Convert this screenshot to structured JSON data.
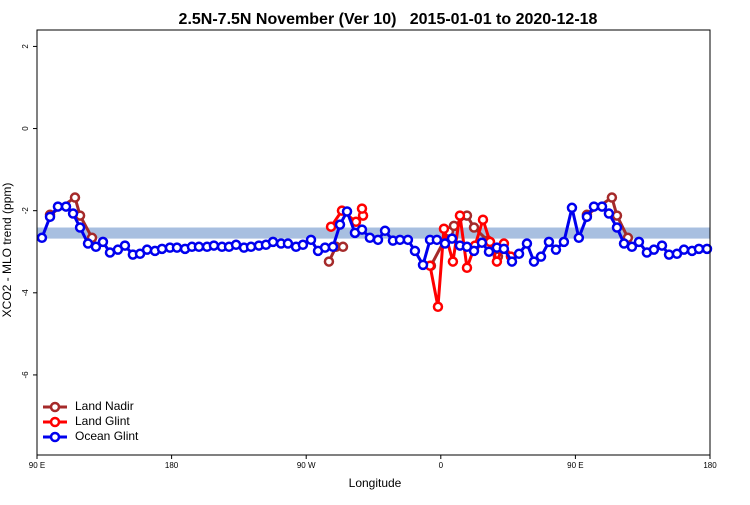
{
  "chart_data": {
    "type": "line",
    "title": "2.5N-7.5N November (Ver 10)   2015-01-01 to 2020-12-18",
    "xlabel": "Longitude",
    "ylabel": "XCO2 - MLO trend (ppm)",
    "xlim": [
      90,
      540
    ],
    "ylim": [
      -7.95,
      2.4
    ],
    "xticks": [
      {
        "value": 90,
        "label": "90 E"
      },
      180,
      {
        "value": 270,
        "label": "90 W"
      },
      {
        "value": 360,
        "label": "0"
      },
      {
        "value": 450,
        "label": "90 E"
      },
      {
        "value": 540,
        "label": "180"
      }
    ],
    "yticks": [
      -6,
      -4,
      -2,
      0,
      2
    ],
    "band": [
      -2.68,
      -2.41
    ],
    "band_color": "#a8bfe0",
    "legend": "bottom-left",
    "series": [
      {
        "name": "Land Nadir",
        "color": "#a52a2a",
        "x": [
          98.7,
          115.4,
          118.8,
          126.8,
          null,
          285.2,
          289.9,
          294.6,
          null,
          353.4,
          365.4,
          368.8,
          377.5,
          382.2,
          391.5,
          398.2,
          null,
          457.7,
          474.4,
          477.8,
          485.1
        ],
        "values": [
          -2.1,
          -1.68,
          -2.12,
          -2.66,
          null,
          -3.24,
          -2.88,
          -2.88,
          null,
          -3.34,
          -2.51,
          -2.37,
          -2.12,
          -2.41,
          -2.73,
          -3.12,
          null,
          -2.1,
          -1.68,
          -2.12,
          -2.66
        ]
      },
      {
        "name": "Land Glint",
        "color": "#ff0000",
        "x": [
          286.6,
          293.9,
          303.3,
          308.0,
          307.3,
          null,
          352.8,
          358.1,
          362.1,
          368.1,
          372.8,
          377.5,
          382.9,
          388.2,
          392.9,
          397.5,
          402.2,
          406.9
        ],
        "values": [
          -2.39,
          -2.0,
          -2.27,
          -2.12,
          -1.95,
          null,
          -3.34,
          -4.34,
          -2.44,
          -3.24,
          -2.12,
          -3.39,
          -2.85,
          -2.22,
          -2.76,
          -3.24,
          -2.8,
          -3.12
        ]
      },
      {
        "name": "Ocean Glint",
        "color": "#0000ee",
        "x": [
          93.3,
          98.7,
          104.0,
          109.4,
          114.1,
          118.8,
          124.1,
          129.4,
          134.1,
          138.8,
          144.1,
          148.8,
          154.1,
          158.9,
          163.6,
          168.9,
          173.6,
          178.9,
          183.6,
          189.0,
          193.6,
          198.3,
          203.7,
          208.3,
          213.7,
          218.4,
          223.1,
          228.4,
          233.1,
          238.4,
          243.1,
          247.8,
          253.2,
          257.8,
          263.2,
          267.8,
          273.2,
          277.9,
          282.6,
          287.9,
          292.6,
          297.3,
          302.6,
          307.3,
          312.6,
          318.0,
          322.7,
          328.0,
          332.7,
          338.0,
          342.7,
          348.1,
          352.8,
          357.4,
          362.8,
          367.5,
          372.8,
          377.5,
          382.2,
          387.5,
          392.2,
          397.5,
          402.2,
          407.6,
          412.3,
          417.6,
          422.3,
          427.0,
          432.3,
          437.0,
          442.3,
          447.7,
          452.3,
          457.7,
          462.4,
          467.8,
          472.4,
          477.8,
          482.5,
          487.8,
          492.5,
          497.8,
          502.5,
          507.9,
          512.6,
          517.9,
          522.6,
          528.0,
          532.6,
          538.0
        ],
        "values": [
          -2.66,
          -2.15,
          -1.9,
          -1.9,
          -2.07,
          -2.41,
          -2.8,
          -2.88,
          -2.76,
          -3.02,
          -2.95,
          -2.85,
          -3.07,
          -3.05,
          -2.95,
          -2.98,
          -2.93,
          -2.9,
          -2.9,
          -2.93,
          -2.88,
          -2.88,
          -2.88,
          -2.85,
          -2.88,
          -2.88,
          -2.83,
          -2.9,
          -2.88,
          -2.85,
          -2.83,
          -2.76,
          -2.8,
          -2.8,
          -2.88,
          -2.83,
          -2.71,
          -2.98,
          -2.9,
          -2.88,
          -2.34,
          -2.02,
          -2.54,
          -2.46,
          -2.66,
          -2.71,
          -2.49,
          -2.73,
          -2.71,
          -2.71,
          -2.98,
          -3.32,
          -2.71,
          -2.71,
          -2.8,
          -2.68,
          -2.85,
          -2.88,
          -2.98,
          -2.78,
          -3.0,
          -2.9,
          -2.93,
          -3.24,
          -3.05,
          -2.8,
          -3.24,
          -3.12,
          -2.76,
          -2.95,
          -2.76,
          -1.93,
          -2.66,
          -2.15,
          -1.9,
          -1.9,
          -2.07,
          -2.41,
          -2.8,
          -2.88,
          -2.76,
          -3.02,
          -2.95,
          -2.85,
          -3.07,
          -3.05,
          -2.95,
          -2.98,
          -2.93,
          -2.93
        ]
      }
    ]
  }
}
